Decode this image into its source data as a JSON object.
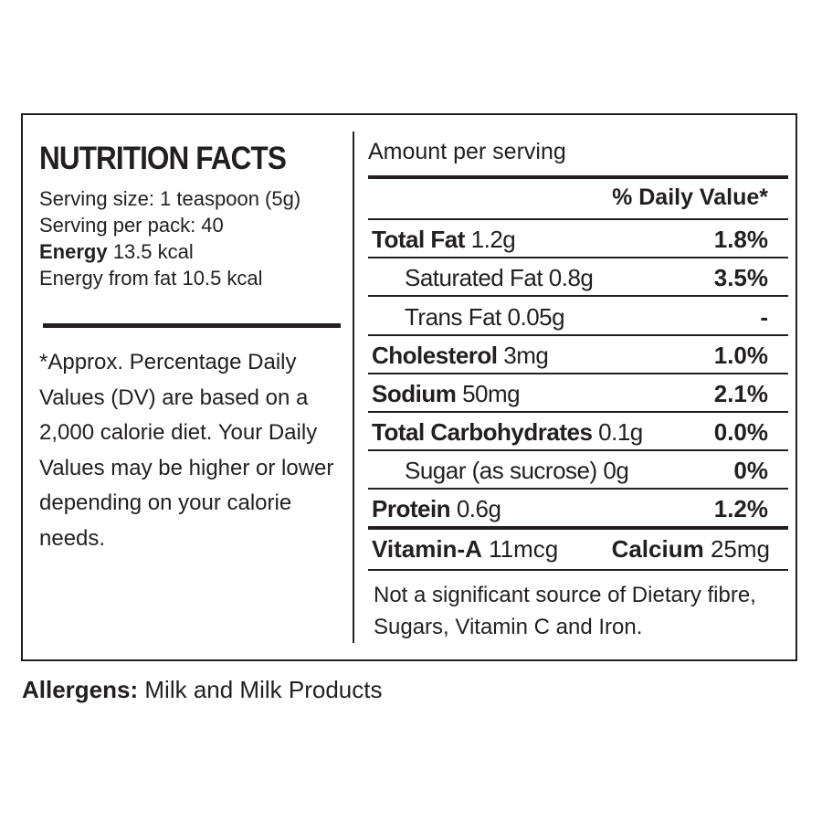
{
  "label": {
    "title": "NUTRITION FACTS",
    "serving_size": "Serving size: 1 teaspoon (5g)",
    "serving_per_pack": "Serving per pack: 40",
    "energy_label": "Energy",
    "energy_value": "13.5 kcal",
    "energy_from_fat": "Energy from fat 10.5 kcal",
    "footnote": "*Approx. Percentage Daily Values (DV) are based on a 2,000 calorie diet. Your Daily Values may be higher or lower depending on your calorie needs.",
    "amount_per_serving": "Amount per serving",
    "dv_header": "% Daily Value*",
    "rows": [
      {
        "name": "Total Fat",
        "amount": "1.2g",
        "pct": "1.8%"
      },
      {
        "name": "Saturated Fat",
        "amount": "0.8g",
        "pct": "3.5%"
      },
      {
        "name": "Trans Fat",
        "amount": "0.05g",
        "pct": "-"
      },
      {
        "name": "Cholesterol",
        "amount": "3mg",
        "pct": "1.0%"
      },
      {
        "name": "Sodium",
        "amount": "50mg",
        "pct": "2.1%"
      },
      {
        "name": "Total Carbohydrates",
        "amount": "0.1g",
        "pct": "0.0%"
      },
      {
        "name": "Sugar (as sucrose)",
        "amount": "0g",
        "pct": "0%"
      },
      {
        "name": "Protein",
        "amount": "0.6g",
        "pct": "1.2%"
      }
    ],
    "vitamin_a_label": "Vitamin-A",
    "vitamin_a_value": "11mcg",
    "calcium_label": "Calcium",
    "calcium_value": "25mg",
    "note": "Not a significant source of Dietary fibre, Sugars, Vitamin C and Iron."
  },
  "allergens": {
    "label": "Allergens:",
    "value": "Milk and Milk Products"
  }
}
